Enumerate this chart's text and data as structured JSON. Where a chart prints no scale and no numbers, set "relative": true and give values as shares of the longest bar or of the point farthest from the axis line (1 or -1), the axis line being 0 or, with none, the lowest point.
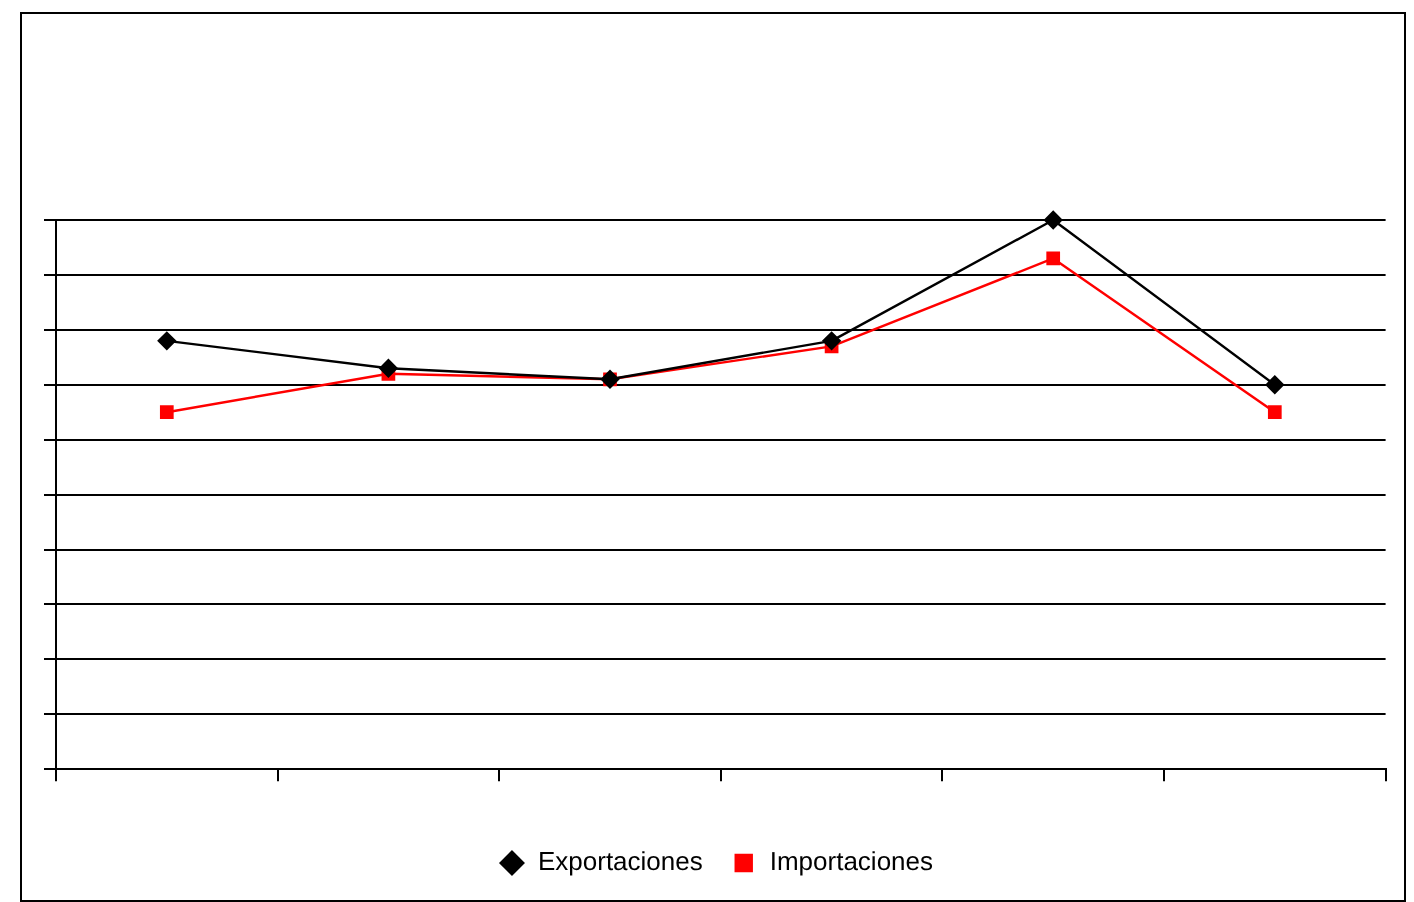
{
  "chart_data": {
    "type": "line",
    "relative": true,
    "categories": [
      null,
      null,
      null,
      null,
      null,
      null
    ],
    "series": [
      {
        "name": "Exportaciones",
        "color": "#000000",
        "marker": "diamond",
        "values": [
          0.78,
          0.73,
          0.71,
          0.78,
          1,
          0.7
        ]
      },
      {
        "name": "Importaciones",
        "color": "#ff0000",
        "marker": "square",
        "values": [
          0.65,
          0.72,
          0.71,
          0.77,
          0.93,
          0.65
        ]
      }
    ],
    "grid": "y",
    "legend": "bottom",
    "line_style": "solid"
  }
}
